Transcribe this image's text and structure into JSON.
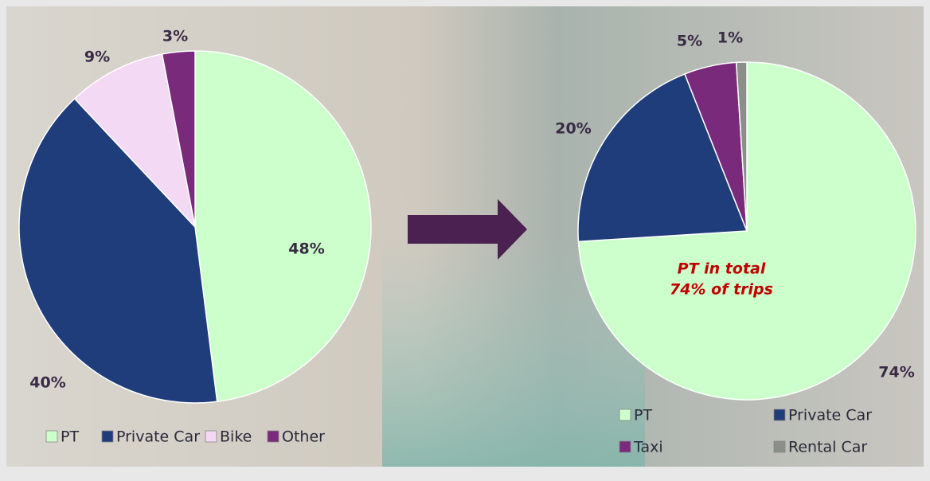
{
  "chart_data": [
    {
      "type": "pie",
      "categories": [
        "PT",
        "Private Car",
        "Bike",
        "Other"
      ],
      "values": [
        48,
        40,
        9,
        3
      ],
      "value_labels": [
        "48%",
        "40%",
        "9%",
        "3%"
      ],
      "colors": [
        "#ccffcc",
        "#1f3d7a",
        "#f3d9f3",
        "#7a2a7a"
      ]
    },
    {
      "type": "pie",
      "categories": [
        "PT",
        "Private Car",
        "Taxi",
        "Rental Car"
      ],
      "values": [
        74,
        20,
        5,
        1
      ],
      "value_labels": [
        "74%",
        "20%",
        "5%",
        "1%"
      ],
      "colors": [
        "#ccffcc",
        "#1f3d7a",
        "#7a2a7a",
        "#8a8f8a"
      ],
      "annotation": [
        "PT in total",
        "74% of trips"
      ]
    }
  ]
}
